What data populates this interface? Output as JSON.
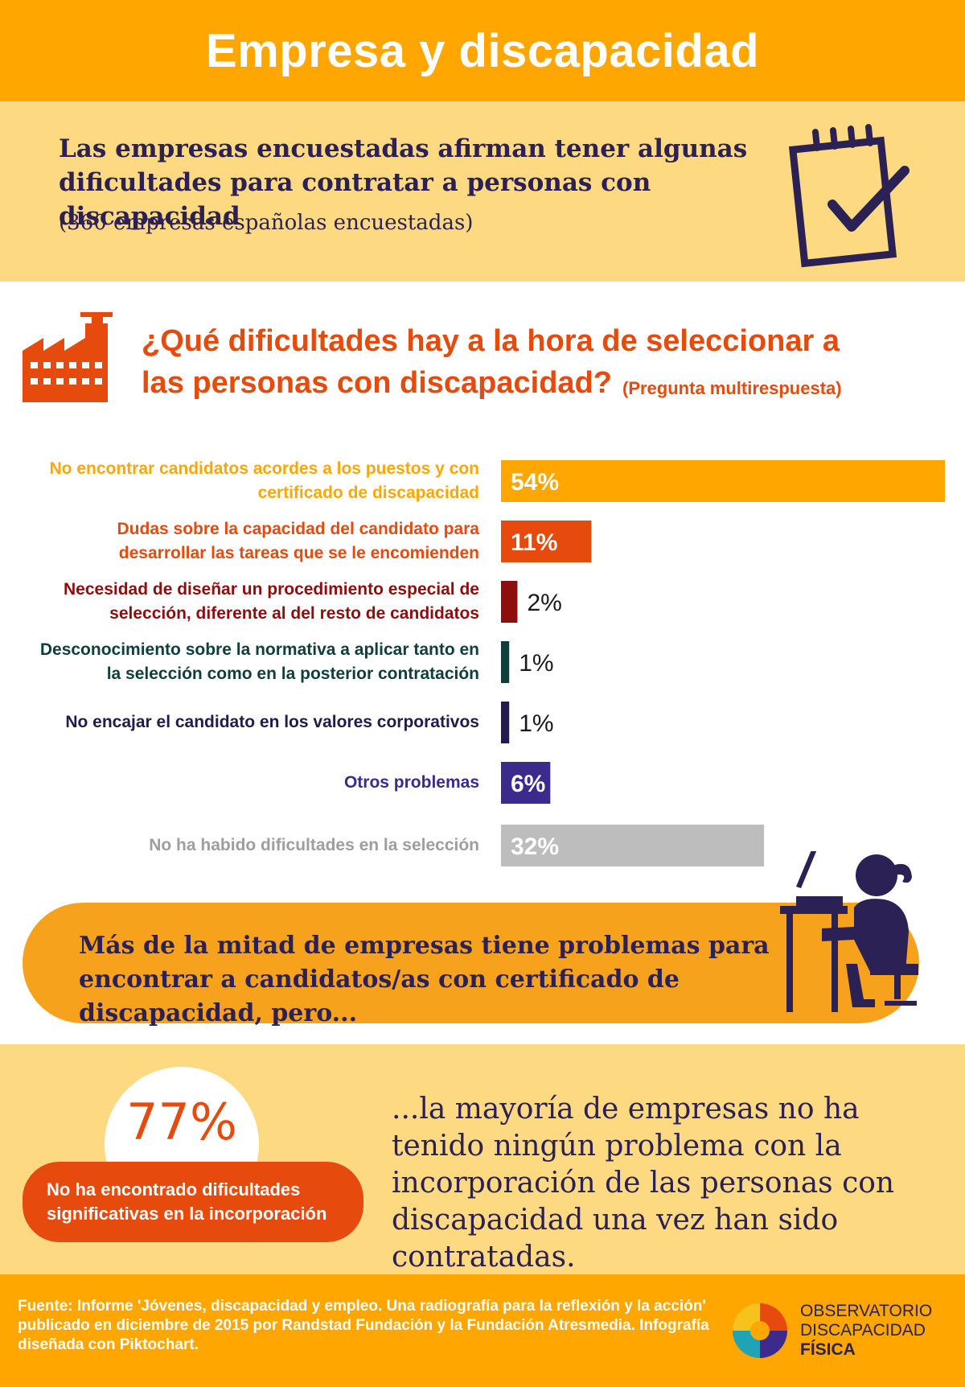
{
  "header": {
    "title": "Empresa y discapacidad"
  },
  "intro": {
    "lead": "Las empresas encuestadas afirman tener algunas dificultades para contratar a personas con discapacidad",
    "sub": "(360 empresas españolas encuestadas)",
    "icon": "clipboard-check-icon"
  },
  "question": {
    "text": "¿Qué dificultades hay a la hora de seleccionar a las personas con discapacidad?",
    "note": "(Pregunta multirespuesta)",
    "icon": "factory-icon"
  },
  "chart_data": {
    "type": "bar",
    "orientation": "horizontal",
    "categories": [
      "No encontrar candidatos acordes a los puestos y con certificado de discapacidad",
      "Dudas sobre la capacidad del candidato para desarrollar las tareas que se le encomienden",
      "Necesidad de diseñar un procedimiento especial de selección, diferente al del resto de candidatos",
      "Desconocimiento sobre la normativa a aplicar tanto en la selección como en la posterior contratación",
      "No encajar el candidato en los valores corporativos",
      "Otros problemas",
      "No ha habido dificultades en la selección"
    ],
    "values": [
      54,
      11,
      2,
      1,
      1,
      6,
      32
    ],
    "value_labels": [
      "54%",
      "11%",
      "2%",
      "1%",
      "1%",
      "6%",
      "32%"
    ],
    "colors": [
      "#FFA600",
      "#E64A0D",
      "#8E0D0D",
      "#0E3E3E",
      "#231A4D",
      "#3C2A8C",
      "#BDBDBD"
    ],
    "xlim": [
      0,
      54
    ],
    "grid": false
  },
  "callout": {
    "text": "Más de la mitad de empresas tiene problemas para encontrar a candidatos/as con certificado de discapacidad, pero...",
    "icon": "person-at-laptop-icon"
  },
  "stat": {
    "value": "77%",
    "label": "No ha encontrado dificultades significativas en la incorporación",
    "text": "...la mayoría de empresas no ha tenido ningún problema con la incorporación de las personas con discapacidad una vez han sido contratadas."
  },
  "footer": {
    "source": "Fuente: Informe 'Jóvenes, discapacidad y empleo. Una radiografía para la reflexión y la acción' publicado en diciembre de 2015 por Randstad Fundación y la Fundación Atresmedia. Infografía diseñada con Piktochart.",
    "brand_line1": "OBSERVATORIO",
    "brand_line2": "DISCAPACIDAD",
    "brand_line3": "FÍSICA",
    "logo_icon": "observatorio-logo-icon"
  }
}
